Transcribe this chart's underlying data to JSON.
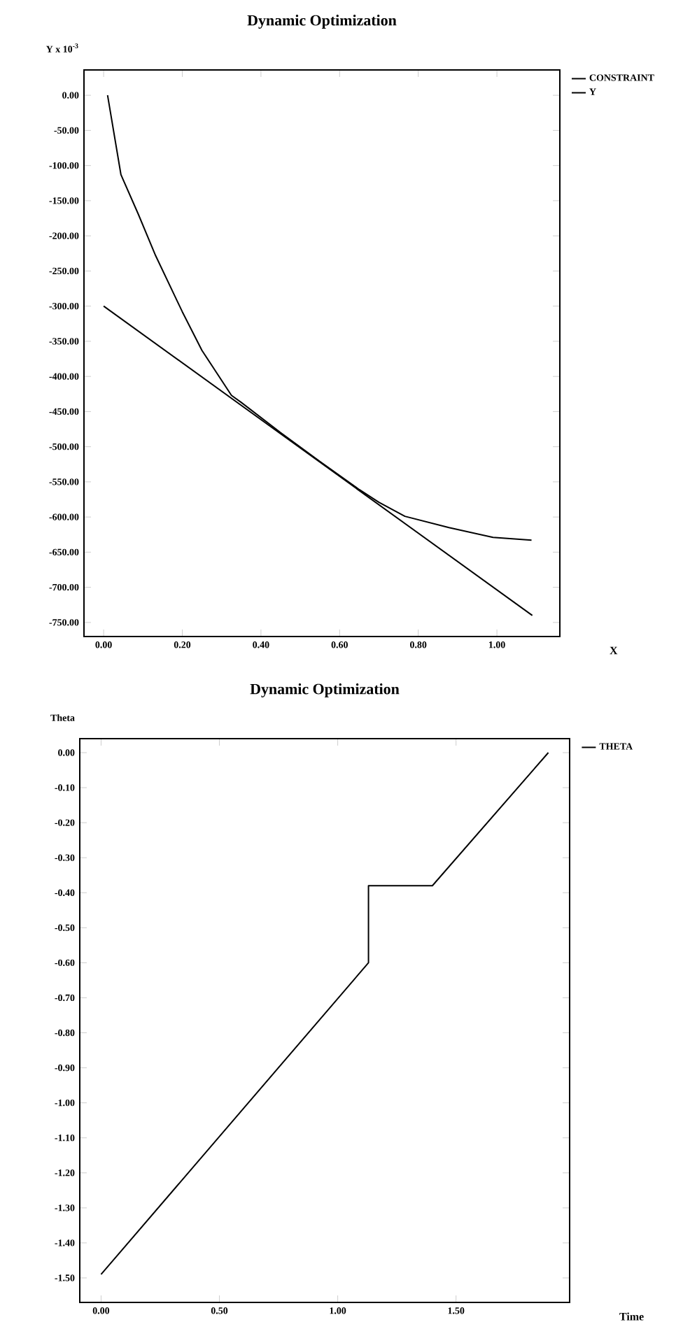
{
  "chart_data": [
    {
      "type": "line",
      "title": "Dynamic Optimization",
      "xlabel": "X",
      "ylabel": "Y x 10$^{-3}$",
      "xlim": [
        -0.05,
        1.16
      ],
      "ylim": [
        -770,
        36
      ],
      "xticks": [
        {
          "value": 0,
          "label": "0.00"
        },
        {
          "value": 0.2,
          "label": "0.20"
        },
        {
          "value": 0.4,
          "label": "0.40"
        },
        {
          "value": 0.6,
          "label": "0.60"
        },
        {
          "value": 0.8,
          "label": "0.80"
        },
        {
          "value": 1.0,
          "label": "1.00"
        }
      ],
      "yticks": [
        {
          "value": 0,
          "label": "0.00"
        },
        {
          "value": -50,
          "label": "-50.00"
        },
        {
          "value": -100,
          "label": "-100.00"
        },
        {
          "value": -150,
          "label": "-150.00"
        },
        {
          "value": -200,
          "label": "-200.00"
        },
        {
          "value": -250,
          "label": "-250.00"
        },
        {
          "value": -300,
          "label": "-300.00"
        },
        {
          "value": -350,
          "label": "-350.00"
        },
        {
          "value": -400,
          "label": "-400.00"
        },
        {
          "value": -450,
          "label": "-450.00"
        },
        {
          "value": -500,
          "label": "-500.00"
        },
        {
          "value": -550,
          "label": "-550.00"
        },
        {
          "value": -600,
          "label": "-600.00"
        },
        {
          "value": -650,
          "label": "-650.00"
        },
        {
          "value": -700,
          "label": "-700.00"
        },
        {
          "value": -750,
          "label": "-750.00"
        }
      ],
      "legend": "top right",
      "marker": "none",
      "line_style": "solid",
      "series": [
        {
          "name": "CONSTRAINT",
          "color": "#000000",
          "x": [
            0,
            1.09
          ],
          "values": [
            -300,
            -740
          ]
        },
        {
          "name": "Y",
          "color": "#000000",
          "x": [
            0.01,
            0.044,
            0.088,
            0.132,
            0.2,
            0.25,
            0.325,
            0.35,
            0.45,
            0.55,
            0.65,
            0.7,
            0.766,
            0.878,
            0.99,
            1.088
          ],
          "values": [
            0,
            -113,
            -169,
            -228,
            -308,
            -363,
            -427,
            -437,
            -480,
            -521,
            -561,
            -579,
            -599,
            -615,
            -629,
            -633
          ]
        }
      ]
    },
    {
      "type": "line",
      "title": "Dynamic Optimization",
      "xlabel": "Time",
      "ylabel": "Theta",
      "xlim": [
        -0.09,
        1.98
      ],
      "ylim": [
        -1.57,
        0.04
      ],
      "xticks": [
        {
          "value": 0,
          "label": "0.00"
        },
        {
          "value": 0.5,
          "label": "0.50"
        },
        {
          "value": 1.0,
          "label": "1.00"
        },
        {
          "value": 1.5,
          "label": "1.50"
        }
      ],
      "yticks": [
        {
          "value": 0,
          "label": "0.00"
        },
        {
          "value": -0.1,
          "label": "-0.10"
        },
        {
          "value": -0.2,
          "label": "-0.20"
        },
        {
          "value": -0.3,
          "label": "-0.30"
        },
        {
          "value": -0.4,
          "label": "-0.40"
        },
        {
          "value": -0.5,
          "label": "-0.50"
        },
        {
          "value": -0.6,
          "label": "-0.60"
        },
        {
          "value": -0.7,
          "label": "-0.70"
        },
        {
          "value": -0.8,
          "label": "-0.80"
        },
        {
          "value": -0.9,
          "label": "-0.90"
        },
        {
          "value": -1.0,
          "label": "-1.00"
        },
        {
          "value": -1.1,
          "label": "-1.10"
        },
        {
          "value": -1.2,
          "label": "-1.20"
        },
        {
          "value": -1.3,
          "label": "-1.30"
        },
        {
          "value": -1.4,
          "label": "-1.40"
        },
        {
          "value": -1.5,
          "label": "-1.50"
        }
      ],
      "legend": "top right",
      "marker": "none",
      "line_style": "solid",
      "series": [
        {
          "name": "THETA",
          "color": "#000000",
          "x": [
            0,
            1.13,
            1.13,
            1.4,
            1.89
          ],
          "values": [
            -1.49,
            -0.6,
            -0.38,
            -0.38,
            0.0
          ]
        }
      ]
    }
  ]
}
